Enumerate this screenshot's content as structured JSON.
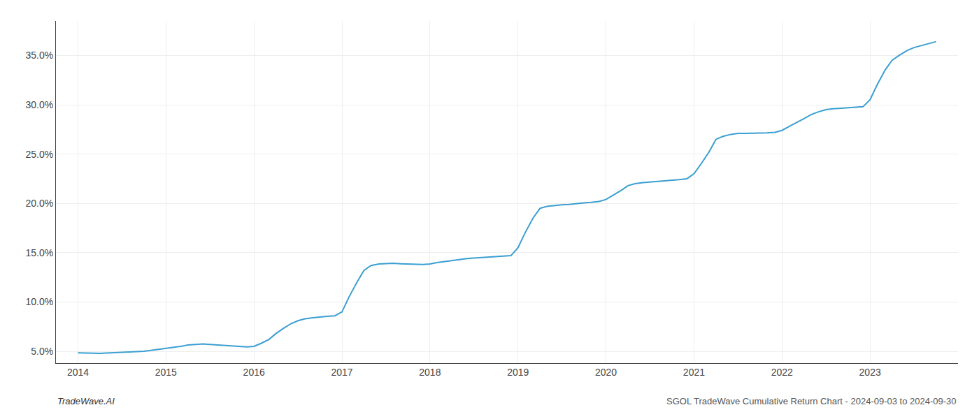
{
  "chart_data": {
    "type": "line",
    "x": [
      2014.0,
      2014.08,
      2014.17,
      2014.25,
      2014.33,
      2014.42,
      2014.5,
      2014.58,
      2014.67,
      2014.75,
      2014.83,
      2014.92,
      2015.0,
      2015.08,
      2015.17,
      2015.25,
      2015.33,
      2015.42,
      2015.5,
      2015.58,
      2015.67,
      2015.75,
      2015.83,
      2015.92,
      2016.0,
      2016.08,
      2016.17,
      2016.25,
      2016.33,
      2016.42,
      2016.5,
      2016.58,
      2016.67,
      2016.75,
      2016.83,
      2016.92,
      2017.0,
      2017.08,
      2017.17,
      2017.25,
      2017.33,
      2017.42,
      2017.5,
      2017.58,
      2017.67,
      2017.75,
      2017.83,
      2017.92,
      2018.0,
      2018.08,
      2018.17,
      2018.25,
      2018.33,
      2018.42,
      2018.5,
      2018.58,
      2018.67,
      2018.75,
      2018.83,
      2018.92,
      2019.0,
      2019.08,
      2019.17,
      2019.25,
      2019.33,
      2019.42,
      2019.5,
      2019.58,
      2019.67,
      2019.75,
      2019.83,
      2019.92,
      2020.0,
      2020.08,
      2020.17,
      2020.25,
      2020.33,
      2020.42,
      2020.5,
      2020.58,
      2020.67,
      2020.75,
      2020.83,
      2020.92,
      2021.0,
      2021.08,
      2021.17,
      2021.25,
      2021.33,
      2021.42,
      2021.5,
      2021.58,
      2021.67,
      2021.75,
      2021.83,
      2021.92,
      2022.0,
      2022.08,
      2022.17,
      2022.25,
      2022.33,
      2022.42,
      2022.5,
      2022.58,
      2022.67,
      2022.75,
      2022.83,
      2022.92,
      2023.0,
      2023.08,
      2023.17,
      2023.25,
      2023.33,
      2023.42,
      2023.5,
      2023.58,
      2023.67,
      2023.75
    ],
    "values": [
      4.85,
      4.82,
      4.8,
      4.8,
      4.82,
      4.85,
      4.9,
      4.92,
      4.95,
      5.0,
      5.1,
      5.2,
      5.3,
      5.4,
      5.5,
      5.65,
      5.7,
      5.75,
      5.7,
      5.65,
      5.6,
      5.55,
      5.5,
      5.45,
      5.5,
      5.8,
      6.2,
      6.8,
      7.3,
      7.8,
      8.1,
      8.3,
      8.4,
      8.5,
      8.55,
      8.6,
      9.0,
      10.5,
      12.0,
      13.2,
      13.7,
      13.85,
      13.9,
      13.92,
      13.88,
      13.85,
      13.82,
      13.8,
      13.85,
      14.0,
      14.1,
      14.2,
      14.3,
      14.4,
      14.45,
      14.5,
      14.55,
      14.6,
      14.65,
      14.7,
      15.5,
      17.0,
      18.5,
      19.5,
      19.7,
      19.8,
      19.85,
      19.9,
      20.0,
      20.05,
      20.1,
      20.2,
      20.4,
      20.8,
      21.3,
      21.8,
      22.0,
      22.1,
      22.15,
      22.2,
      22.25,
      22.3,
      22.4,
      22.5,
      23.0,
      24.0,
      25.2,
      26.5,
      26.8,
      27.0,
      27.1,
      27.1,
      27.1,
      27.1,
      27.15,
      27.2,
      27.4,
      27.8,
      28.2,
      28.6,
      29.0,
      29.3,
      29.5,
      29.6,
      29.65,
      29.7,
      29.75,
      29.8,
      30.5,
      32.0,
      33.5,
      34.5,
      35.0,
      35.5,
      35.8,
      36.0,
      36.2,
      36.4
    ],
    "color": "#3a9fd1",
    "xlim": [
      2013.75,
      2024.0
    ],
    "ylim": [
      3.8,
      38.5
    ],
    "xticks": [
      2014,
      2015,
      2016,
      2017,
      2018,
      2019,
      2020,
      2021,
      2022,
      2023
    ],
    "yticks": [
      {
        "value": 5.0,
        "label": "5.0%"
      },
      {
        "value": 10.0,
        "label": "10.0%"
      },
      {
        "value": 15.0,
        "label": "15.0%"
      },
      {
        "value": 20.0,
        "label": "20.0%"
      },
      {
        "value": 25.0,
        "label": "25.0%"
      },
      {
        "value": 30.0,
        "label": "30.0%"
      },
      {
        "value": 35.0,
        "label": "35.0%"
      }
    ],
    "grid": true,
    "annotations": [
      "TradeWave.AI",
      "SGOL TradeWave Cumulative Return Chart - 2024-09-03 to 2024-09-30"
    ]
  }
}
